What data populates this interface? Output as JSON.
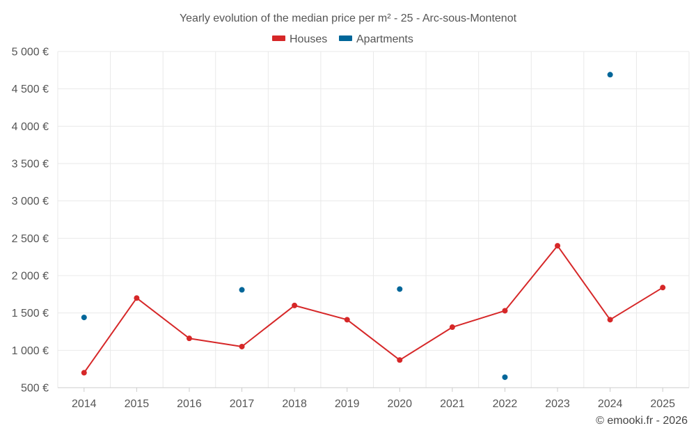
{
  "chart_data": {
    "type": "line",
    "title": "Yearly evolution of the median price per m² - 25 - Arc-sous-Montenot",
    "categories": [
      "2014",
      "2015",
      "2016",
      "2017",
      "2018",
      "2019",
      "2020",
      "2021",
      "2022",
      "2023",
      "2024",
      "2025"
    ],
    "y_tick_labels": [
      "500 €",
      "1 000 €",
      "1 500 €",
      "2 000 €",
      "2 500 €",
      "3 000 €",
      "3 500 €",
      "4 000 €",
      "4 500 €",
      "5 000 €"
    ],
    "ylim": [
      500,
      5000
    ],
    "y_tick_step": 500,
    "grid": true,
    "legend_position": "top-center",
    "series": [
      {
        "name": "Houses",
        "color": "#d62728",
        "style": "line-markers",
        "values": [
          700,
          1700,
          1160,
          1050,
          1600,
          1410,
          870,
          1310,
          1530,
          2400,
          1410,
          1840
        ]
      },
      {
        "name": "Apartments",
        "color": "#006699",
        "style": "markers",
        "values": [
          1440,
          null,
          null,
          1810,
          null,
          null,
          1820,
          null,
          640,
          null,
          4690,
          null
        ]
      }
    ]
  },
  "credit": "© emooki.fr - 2026"
}
